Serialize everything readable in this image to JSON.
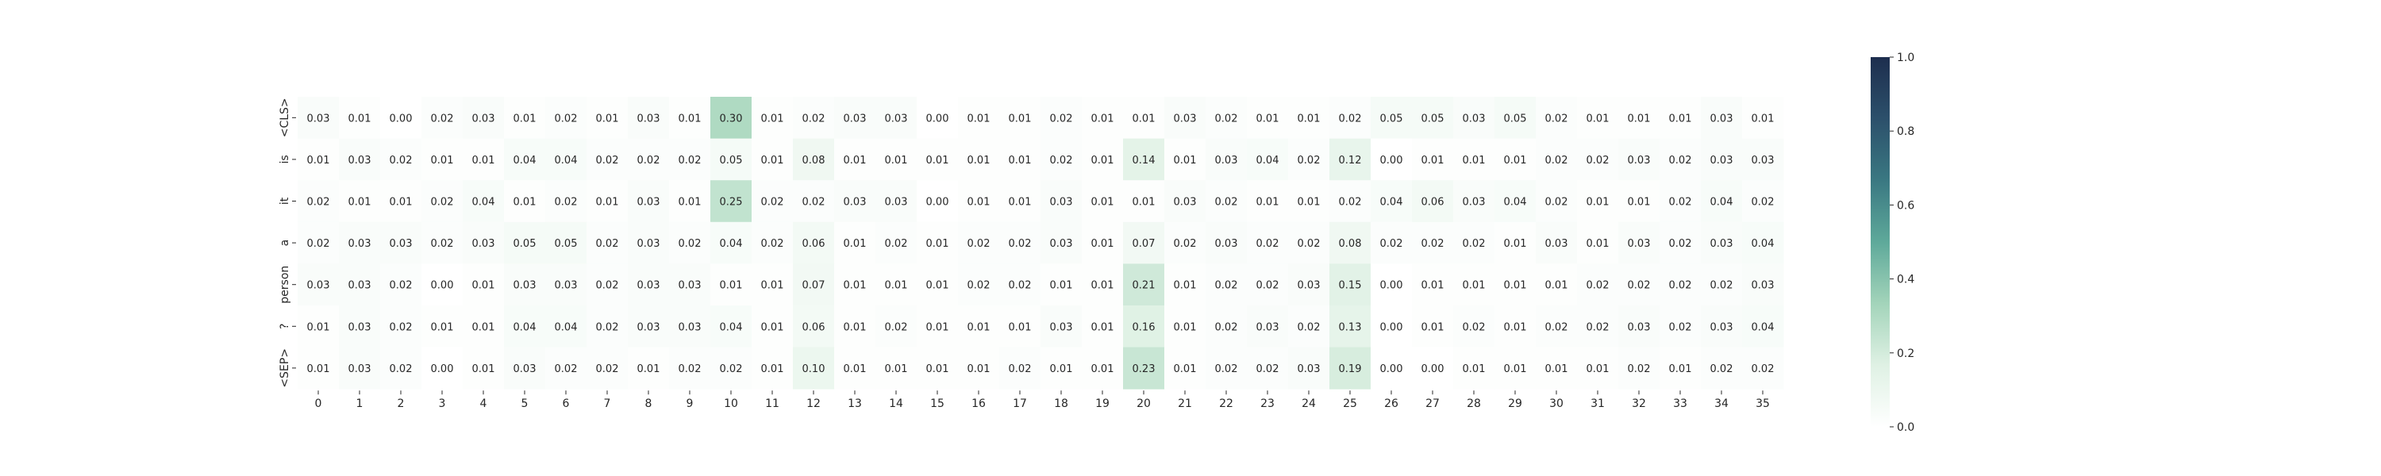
{
  "chart_data": {
    "type": "heatmap",
    "x_labels": [
      "0",
      "1",
      "2",
      "3",
      "4",
      "5",
      "6",
      "7",
      "8",
      "9",
      "10",
      "11",
      "12",
      "13",
      "14",
      "15",
      "16",
      "17",
      "18",
      "19",
      "20",
      "21",
      "22",
      "23",
      "24",
      "25",
      "26",
      "27",
      "28",
      "29",
      "30",
      "31",
      "32",
      "33",
      "34",
      "35"
    ],
    "y_labels": [
      "<CLS>",
      "is",
      "it",
      "a",
      "person",
      "?",
      "<SEP>"
    ],
    "values": [
      [
        0.03,
        0.01,
        0.0,
        0.02,
        0.03,
        0.01,
        0.02,
        0.01,
        0.03,
        0.01,
        0.3,
        0.01,
        0.02,
        0.03,
        0.03,
        0.0,
        0.01,
        0.01,
        0.02,
        0.01,
        0.01,
        0.03,
        0.02,
        0.01,
        0.01,
        0.02,
        0.05,
        0.05,
        0.03,
        0.05,
        0.02,
        0.01,
        0.01,
        0.01,
        0.03,
        0.01
      ],
      [
        0.01,
        0.03,
        0.02,
        0.01,
        0.01,
        0.04,
        0.04,
        0.02,
        0.02,
        0.02,
        0.05,
        0.01,
        0.08,
        0.01,
        0.01,
        0.01,
        0.01,
        0.01,
        0.02,
        0.01,
        0.14,
        0.01,
        0.03,
        0.04,
        0.02,
        0.12,
        0.0,
        0.01,
        0.01,
        0.01,
        0.02,
        0.02,
        0.03,
        0.02,
        0.03,
        0.03
      ],
      [
        0.02,
        0.01,
        0.01,
        0.02,
        0.04,
        0.01,
        0.02,
        0.01,
        0.03,
        0.01,
        0.25,
        0.02,
        0.02,
        0.03,
        0.03,
        0.0,
        0.01,
        0.01,
        0.03,
        0.01,
        0.01,
        0.03,
        0.02,
        0.01,
        0.01,
        0.02,
        0.04,
        0.06,
        0.03,
        0.04,
        0.02,
        0.01,
        0.01,
        0.02,
        0.04,
        0.02
      ],
      [
        0.02,
        0.03,
        0.03,
        0.02,
        0.03,
        0.05,
        0.05,
        0.02,
        0.03,
        0.02,
        0.04,
        0.02,
        0.06,
        0.01,
        0.02,
        0.01,
        0.02,
        0.02,
        0.03,
        0.01,
        0.07,
        0.02,
        0.03,
        0.02,
        0.02,
        0.08,
        0.02,
        0.02,
        0.02,
        0.01,
        0.03,
        0.01,
        0.03,
        0.02,
        0.03,
        0.04
      ],
      [
        0.03,
        0.03,
        0.02,
        0.0,
        0.01,
        0.03,
        0.03,
        0.02,
        0.03,
        0.03,
        0.01,
        0.01,
        0.07,
        0.01,
        0.01,
        0.01,
        0.02,
        0.02,
        0.01,
        0.01,
        0.21,
        0.01,
        0.02,
        0.02,
        0.03,
        0.15,
        0.0,
        0.01,
        0.01,
        0.01,
        0.01,
        0.02,
        0.02,
        0.02,
        0.02,
        0.03
      ],
      [
        0.01,
        0.03,
        0.02,
        0.01,
        0.01,
        0.04,
        0.04,
        0.02,
        0.03,
        0.03,
        0.04,
        0.01,
        0.06,
        0.01,
        0.02,
        0.01,
        0.01,
        0.01,
        0.03,
        0.01,
        0.16,
        0.01,
        0.02,
        0.03,
        0.02,
        0.13,
        0.0,
        0.01,
        0.02,
        0.01,
        0.02,
        0.02,
        0.03,
        0.02,
        0.03,
        0.04
      ],
      [
        0.01,
        0.03,
        0.02,
        0.0,
        0.01,
        0.03,
        0.02,
        0.02,
        0.01,
        0.02,
        0.02,
        0.01,
        0.1,
        0.01,
        0.01,
        0.01,
        0.01,
        0.02,
        0.01,
        0.01,
        0.23,
        0.01,
        0.02,
        0.02,
        0.03,
        0.19,
        0.0,
        0.0,
        0.01,
        0.01,
        0.01,
        0.01,
        0.02,
        0.01,
        0.02,
        0.02
      ]
    ],
    "value_format": "0.00",
    "vmin": 0.0,
    "vmax": 1.0,
    "colormap": [
      "#ffffff",
      "#dff1e4",
      "#a3d4ba",
      "#5ea99a",
      "#3a7882",
      "#2c506b",
      "#1d2e4e"
    ],
    "colorbar_ticks": [
      "0.0",
      "0.2",
      "0.4",
      "0.6",
      "0.8",
      "1.0"
    ],
    "title": "",
    "xlabel": "",
    "ylabel": ""
  }
}
